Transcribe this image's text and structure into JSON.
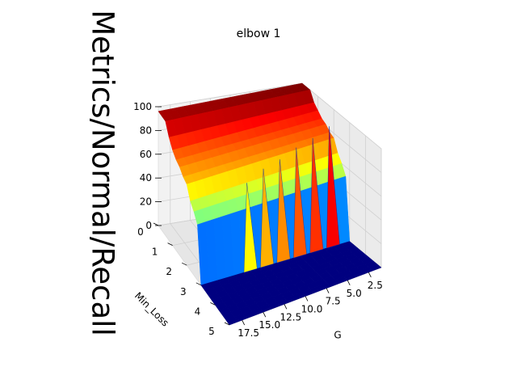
{
  "chart_data": {
    "type": "surface3d",
    "title": "elbow 1",
    "xlabel": "G",
    "ylabel": "Min_Loss",
    "zlabel": "Metrics/Normal/Recall",
    "xlim": [
      1,
      19
    ],
    "ylim": [
      0,
      5
    ],
    "zlim": [
      0,
      100
    ],
    "x_ticks": [
      2.5,
      5.0,
      7.5,
      10.0,
      12.5,
      15.0,
      17.5
    ],
    "x_tick_labels": [
      "2.5",
      "5.0",
      "7.5",
      "10.0",
      "12.5",
      "15.0",
      "17.5"
    ],
    "y_ticks": [
      0,
      1,
      2,
      3,
      4,
      5
    ],
    "y_tick_labels": [
      "0",
      "1",
      "2",
      "3",
      "4",
      "5"
    ],
    "z_ticks": [
      0,
      20,
      40,
      60,
      80,
      100
    ],
    "z_tick_labels": [
      "0",
      "20",
      "40",
      "60",
      "80",
      "100"
    ],
    "colormap": "jet",
    "grid": true,
    "surface": {
      "G": [
        1,
        19
      ],
      "min_loss": [
        0.0,
        0.25,
        0.5,
        0.75,
        1.0,
        1.25,
        1.5,
        1.75,
        2.0,
        2.25,
        2.5,
        2.75,
        3.0,
        3.25,
        3.5,
        3.75,
        4.0,
        4.25,
        4.5,
        4.75,
        5.0
      ],
      "recall_at_min_loss": [
        97,
        97,
        97,
        88,
        82,
        78,
        76,
        72,
        70,
        60,
        55,
        48,
        0,
        0,
        0,
        0,
        0,
        0,
        0,
        0,
        0
      ],
      "recall_peak_at_low_G": [
        100,
        100,
        100,
        92,
        88,
        84,
        82,
        78,
        76,
        66,
        60,
        52,
        0,
        0,
        0,
        0,
        0,
        0,
        0,
        0,
        0
      ],
      "spike_G": [
        3,
        5,
        7,
        9,
        11,
        13
      ],
      "spike_recall": [
        98,
        92,
        88,
        82,
        78,
        70
      ]
    }
  }
}
